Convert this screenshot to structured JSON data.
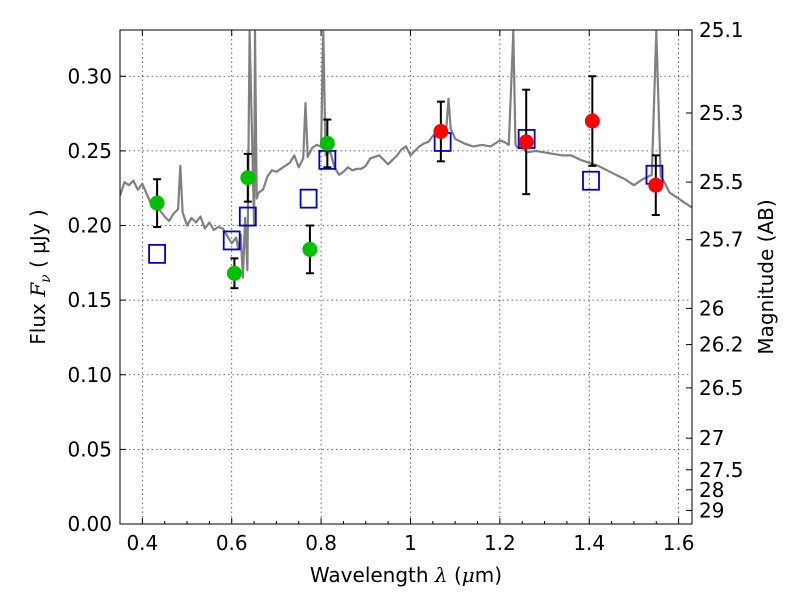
{
  "chart_data": {
    "type": "scatter",
    "title": "",
    "xlabel": {
      "prefix": "Wavelength ",
      "symbol": "λ",
      "unit_open": " (",
      "unit_symbol": "μ",
      "unit_close": "m)"
    },
    "ylabel": {
      "prefix": "Flux ",
      "symbol": "F",
      "subscript": "ν",
      "unit": " ( μJy )"
    },
    "y2label": "Magnitude (AB)",
    "xlim": [
      0.35,
      1.63
    ],
    "ylim": [
      0.0,
      0.331
    ],
    "grid": true,
    "x_ticks": [
      0.4,
      0.6,
      0.8,
      1.0,
      1.2,
      1.4,
      1.6
    ],
    "x_tick_labels": [
      "0.4",
      "0.6",
      "0.8",
      "1",
      "1.2",
      "1.4",
      "1.6"
    ],
    "y_ticks": [
      0.0,
      0.05,
      0.1,
      0.15,
      0.2,
      0.25,
      0.3
    ],
    "y_tick_labels": [
      "0.00",
      "0.05",
      "0.10",
      "0.15",
      "0.20",
      "0.25",
      "0.30"
    ],
    "y2_ticks": [
      {
        "label": "25.1",
        "flux": 0.3311
      },
      {
        "label": "25.3",
        "flux": 0.2754
      },
      {
        "label": "25.5",
        "flux": 0.2291
      },
      {
        "label": "25.7",
        "flux": 0.1905
      },
      {
        "label": "26",
        "flux": 0.1445
      },
      {
        "label": "26.2",
        "flux": 0.1202
      },
      {
        "label": "26.5",
        "flux": 0.0912
      },
      {
        "label": "27",
        "flux": 0.0575
      },
      {
        "label": "27.5",
        "flux": 0.0363
      },
      {
        "label": "28",
        "flux": 0.0229
      },
      {
        "label": "29",
        "flux": 0.0091
      }
    ],
    "colors": {
      "model": "#808080",
      "green": "#00c000",
      "red": "#ff0000",
      "squares": "#0000cc",
      "errorbar": "#000000"
    },
    "series": [
      {
        "kind": "line",
        "x": [
          0.35,
          0.36,
          0.37,
          0.38,
          0.39,
          0.4,
          0.41,
          0.42,
          0.43,
          0.44,
          0.45,
          0.46,
          0.47,
          0.48,
          0.485,
          0.49,
          0.5,
          0.51,
          0.52,
          0.53,
          0.54,
          0.55,
          0.56,
          0.57,
          0.58,
          0.59,
          0.6,
          0.61,
          0.615,
          0.62,
          0.625,
          0.63,
          0.635,
          0.64,
          0.65,
          0.652,
          0.656,
          0.66,
          0.67,
          0.68,
          0.69,
          0.7,
          0.71,
          0.72,
          0.73,
          0.74,
          0.75,
          0.76,
          0.765,
          0.77,
          0.78,
          0.79,
          0.8,
          0.805,
          0.81,
          0.82,
          0.83,
          0.84,
          0.85,
          0.86,
          0.87,
          0.88,
          0.89,
          0.9,
          0.91,
          0.92,
          0.93,
          0.94,
          0.95,
          0.96,
          0.97,
          0.98,
          0.99,
          1.0,
          1.01,
          1.02,
          1.03,
          1.04,
          1.05,
          1.06,
          1.07,
          1.08,
          1.085,
          1.09,
          1.1,
          1.12,
          1.14,
          1.16,
          1.18,
          1.2,
          1.21,
          1.22,
          1.23,
          1.235,
          1.24,
          1.25,
          1.26,
          1.28,
          1.3,
          1.32,
          1.34,
          1.36,
          1.38,
          1.4,
          1.42,
          1.44,
          1.46,
          1.48,
          1.5,
          1.52,
          1.54,
          1.55,
          1.56,
          1.57,
          1.58,
          1.6,
          1.62,
          1.63
        ],
        "y": [
          0.22,
          0.229,
          0.227,
          0.23,
          0.224,
          0.228,
          0.221,
          0.214,
          0.212,
          0.21,
          0.206,
          0.203,
          0.208,
          0.211,
          0.24,
          0.209,
          0.2,
          0.205,
          0.202,
          0.206,
          0.198,
          0.202,
          0.197,
          0.199,
          0.198,
          0.193,
          0.188,
          0.192,
          0.184,
          0.194,
          0.165,
          0.205,
          0.17,
          0.33,
          0.2,
          0.33,
          0.218,
          0.222,
          0.224,
          0.233,
          0.237,
          0.236,
          0.238,
          0.24,
          0.242,
          0.247,
          0.239,
          0.245,
          0.282,
          0.246,
          0.252,
          0.254,
          0.253,
          0.33,
          0.247,
          0.25,
          0.239,
          0.234,
          0.236,
          0.239,
          0.237,
          0.238,
          0.238,
          0.24,
          0.245,
          0.246,
          0.247,
          0.244,
          0.241,
          0.244,
          0.247,
          0.251,
          0.253,
          0.247,
          0.25,
          0.253,
          0.255,
          0.256,
          0.26,
          0.263,
          0.262,
          0.264,
          0.285,
          0.265,
          0.258,
          0.255,
          0.253,
          0.254,
          0.253,
          0.257,
          0.256,
          0.254,
          0.33,
          0.254,
          0.252,
          0.252,
          0.249,
          0.25,
          0.249,
          0.248,
          0.247,
          0.247,
          0.244,
          0.242,
          0.24,
          0.237,
          0.234,
          0.231,
          0.227,
          0.231,
          0.234,
          0.33,
          0.233,
          0.228,
          0.222,
          0.218,
          0.214,
          0.212
        ],
        "color": "#808080"
      },
      {
        "kind": "squares",
        "x": [
          0.433,
          0.6,
          0.636,
          0.772,
          0.814,
          1.072,
          1.26,
          1.404,
          1.546
        ],
        "y": [
          0.181,
          0.19,
          0.206,
          0.218,
          0.244,
          0.256,
          0.258,
          0.23,
          0.234
        ],
        "color": "#0000cc"
      },
      {
        "kind": "points",
        "x": [
          0.433,
          0.606,
          0.636,
          0.775,
          0.814
        ],
        "y": [
          0.215,
          0.168,
          0.232,
          0.184,
          0.255
        ],
        "yerr": [
          0.016,
          0.01,
          0.016,
          0.016,
          0.016
        ],
        "color": "#00c000"
      },
      {
        "kind": "points",
        "x": [
          1.068,
          1.259,
          1.407,
          1.549
        ],
        "y": [
          0.263,
          0.256,
          0.27,
          0.227
        ],
        "yerr": [
          0.02,
          0.035,
          0.03,
          0.02
        ],
        "color": "#ff0000"
      }
    ]
  }
}
